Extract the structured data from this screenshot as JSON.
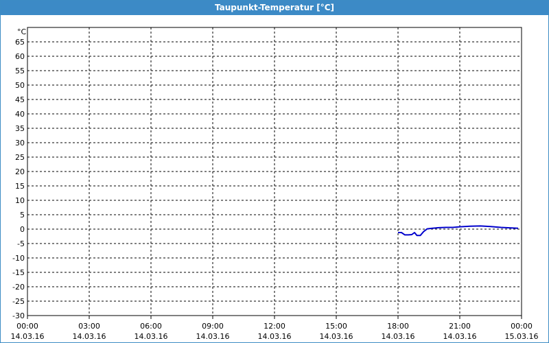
{
  "window": {
    "title": "Taupunkt-Temperatur [°C]"
  },
  "chart_data": {
    "type": "line",
    "title": "Taupunkt-Temperatur [°C]",
    "ylabel": "°C",
    "ylim": [
      -30,
      65
    ],
    "yticks": [
      65,
      60,
      55,
      50,
      45,
      40,
      35,
      30,
      25,
      20,
      15,
      10,
      5,
      0,
      -5,
      -10,
      -15,
      -20,
      -25,
      -30
    ],
    "xlim": [
      "2016-03-14 00:00",
      "2016-03-15 00:00"
    ],
    "xticks": [
      {
        "time": "00:00",
        "date": "14.03.16"
      },
      {
        "time": "03:00",
        "date": "14.03.16"
      },
      {
        "time": "06:00",
        "date": "14.03.16"
      },
      {
        "time": "09:00",
        "date": "14.03.16"
      },
      {
        "time": "12:00",
        "date": "14.03.16"
      },
      {
        "time": "15:00",
        "date": "14.03.16"
      },
      {
        "time": "18:00",
        "date": "14.03.16"
      },
      {
        "time": "21:00",
        "date": "14.03.16"
      },
      {
        "time": "00:00",
        "date": "15.03.16"
      }
    ],
    "grid": true,
    "series": [
      {
        "color": "#0000cc",
        "points": [
          {
            "t": "2016-03-14 18:00",
            "v": -1.2
          },
          {
            "t": "2016-03-14 18:10",
            "v": -1.2
          },
          {
            "t": "2016-03-14 18:20",
            "v": -2.0
          },
          {
            "t": "2016-03-14 18:30",
            "v": -2.0
          },
          {
            "t": "2016-03-14 18:40",
            "v": -1.9
          },
          {
            "t": "2016-03-14 18:48",
            "v": -1.2
          },
          {
            "t": "2016-03-14 18:55",
            "v": -2.2
          },
          {
            "t": "2016-03-14 19:05",
            "v": -2.2
          },
          {
            "t": "2016-03-14 19:15",
            "v": -0.8
          },
          {
            "t": "2016-03-14 19:25",
            "v": 0.1
          },
          {
            "t": "2016-03-14 19:40",
            "v": 0.3
          },
          {
            "t": "2016-03-14 20:00",
            "v": 0.5
          },
          {
            "t": "2016-03-14 20:20",
            "v": 0.6
          },
          {
            "t": "2016-03-14 20:40",
            "v": 0.6
          },
          {
            "t": "2016-03-14 21:00",
            "v": 0.8
          },
          {
            "t": "2016-03-14 21:30",
            "v": 1.0
          },
          {
            "t": "2016-03-14 22:00",
            "v": 1.1
          },
          {
            "t": "2016-03-14 22:30",
            "v": 0.9
          },
          {
            "t": "2016-03-14 23:00",
            "v": 0.6
          },
          {
            "t": "2016-03-14 23:30",
            "v": 0.4
          },
          {
            "t": "2016-03-14 23:50",
            "v": 0.3
          }
        ]
      }
    ]
  }
}
